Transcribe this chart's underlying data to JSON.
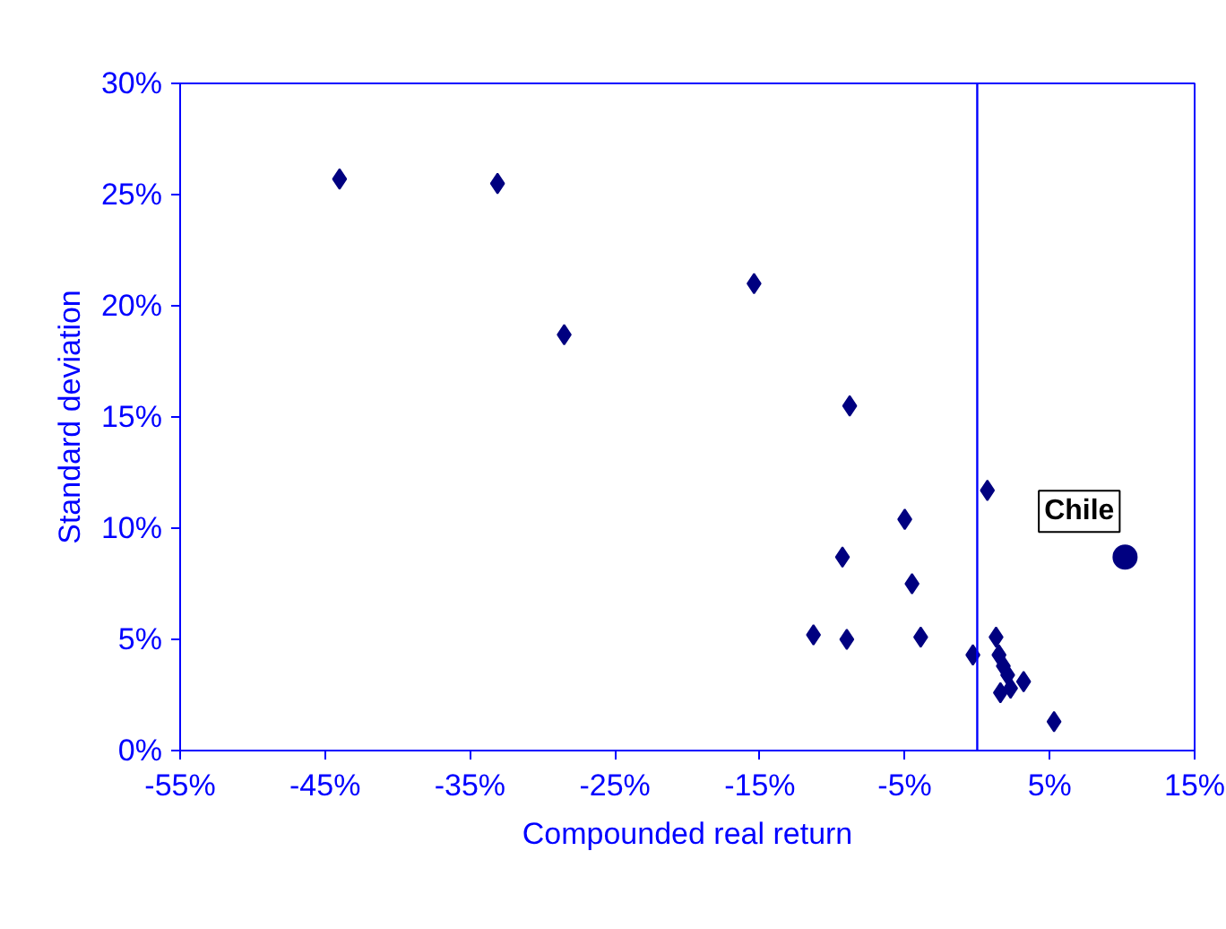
{
  "chart_data": {
    "type": "scatter",
    "xlabel": "Compounded real return",
    "ylabel": "Standard deviation",
    "xlim": [
      -55,
      15
    ],
    "xticks": [
      {
        "value": -55,
        "label": "-55%"
      },
      {
        "value": -45,
        "label": "-45%"
      },
      {
        "value": -35,
        "label": "-35%"
      },
      {
        "value": -25,
        "label": "-25%"
      },
      {
        "value": -15,
        "label": "-15%"
      },
      {
        "value": -5,
        "label": "-5%"
      },
      {
        "value": 5,
        "label": "5%"
      },
      {
        "value": 15,
        "label": "15%"
      }
    ],
    "ylim": [
      0,
      30
    ],
    "yticks": [
      {
        "value": 0,
        "label": "0%"
      },
      {
        "value": 5,
        "label": "5%"
      },
      {
        "value": 10,
        "label": "10%"
      },
      {
        "value": 15,
        "label": "15%"
      },
      {
        "value": 20,
        "label": "20%"
      },
      {
        "value": 25,
        "label": "25%"
      },
      {
        "value": 30,
        "label": "30%"
      }
    ],
    "grid": false,
    "ref_lines": [
      {
        "axis": "x",
        "value": 0,
        "color": "#0000ff"
      }
    ],
    "series": [
      {
        "color": "#000080",
        "marker": "diamond",
        "x": [
          -44.0,
          -33.1,
          -28.5,
          -15.4,
          -8.8,
          -5.0,
          -9.3,
          -4.5,
          -11.3,
          -9.0,
          -3.9,
          -0.3,
          0.7,
          1.3,
          1.5,
          1.8,
          2.1,
          1.6,
          2.3,
          3.2,
          5.3
        ],
        "values": [
          25.7,
          25.5,
          18.7,
          21.0,
          15.5,
          10.4,
          8.7,
          7.5,
          5.2,
          5.0,
          5.1,
          4.3,
          11.7,
          5.1,
          4.3,
          3.8,
          3.4,
          2.6,
          2.8,
          3.1,
          1.3
        ]
      },
      {
        "name": "Chile",
        "color": "#000080",
        "marker": "circle",
        "x": [
          10.2
        ],
        "values": [
          8.7
        ]
      }
    ]
  }
}
